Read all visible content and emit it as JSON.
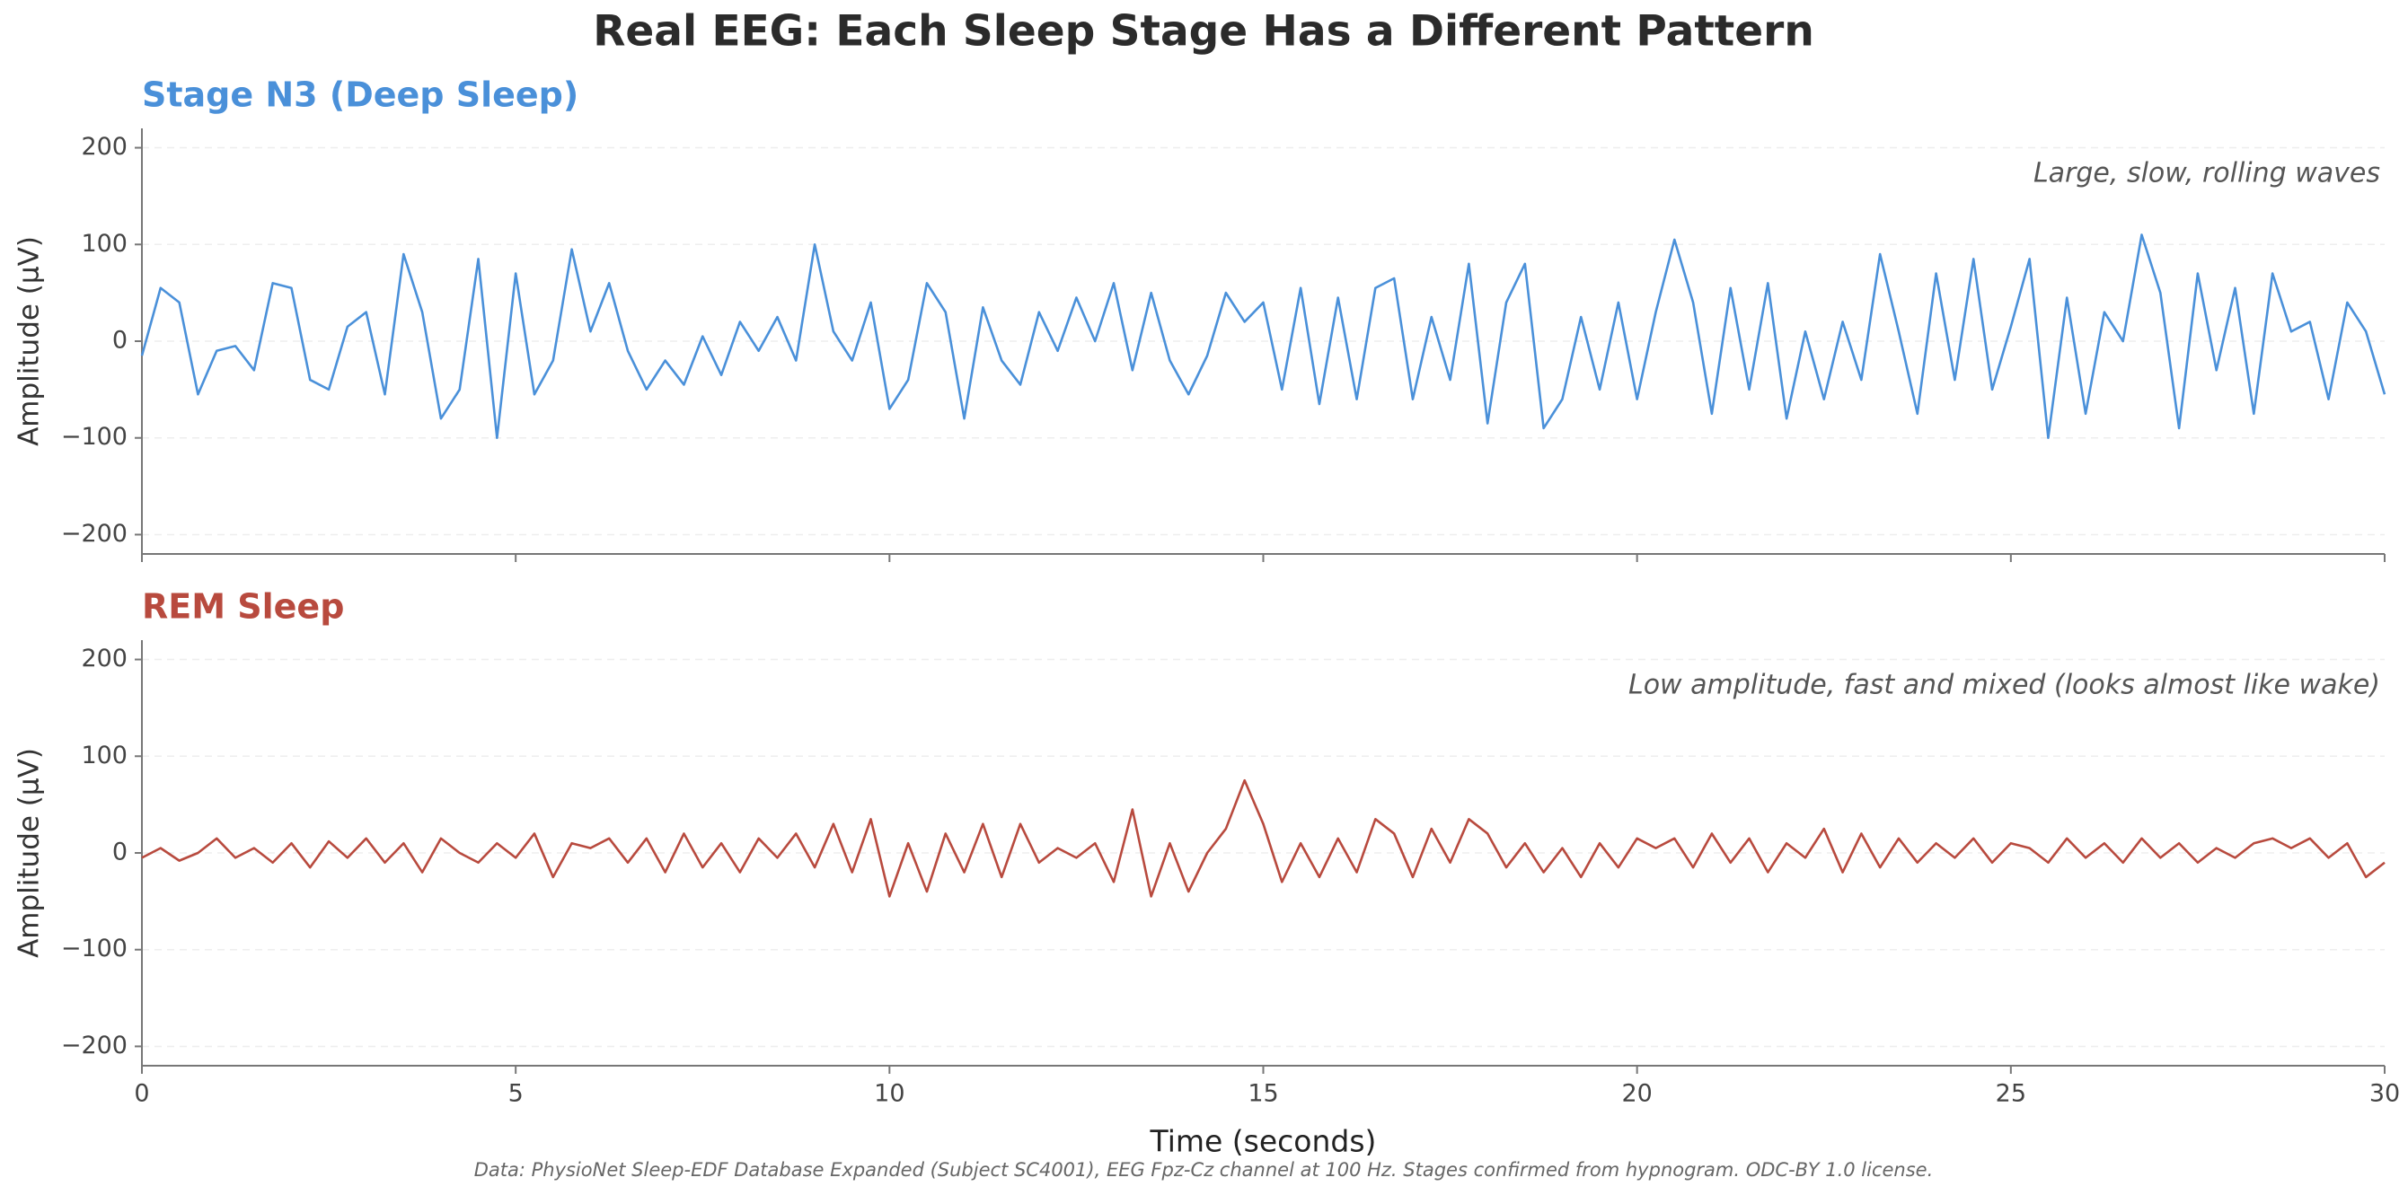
{
  "title": "Real EEG: Each Sleep Stage Has a Different Pattern",
  "source": "Data: PhysioNet Sleep-EDF Database Expanded (Subject SC4001), EEG Fpz-Cz channel at 100 Hz. Stages confirmed from hypnogram. ODC-BY 1.0 license.",
  "chart_data": [
    {
      "type": "line",
      "title": "Stage N3 (Deep Sleep)",
      "annotation": "Large, slow, rolling waves",
      "ylabel": "Amplitude (µV)",
      "color": "#4a90d9",
      "grid": true,
      "xlim": [
        0,
        30
      ],
      "xticks": [
        0,
        5,
        10,
        15,
        20,
        25,
        30
      ],
      "ylim": [
        -220,
        220
      ],
      "yticks": [
        {
          "value": -200,
          "label": "−200"
        },
        {
          "value": -100,
          "label": "−100"
        },
        0,
        100,
        200
      ],
      "x": [
        0,
        0.25,
        0.5,
        0.75,
        1,
        1.25,
        1.5,
        1.75,
        2,
        2.25,
        2.5,
        2.75,
        3,
        3.25,
        3.5,
        3.75,
        4,
        4.25,
        4.5,
        4.75,
        5,
        5.25,
        5.5,
        5.75,
        6,
        6.25,
        6.5,
        6.75,
        7,
        7.25,
        7.5,
        7.75,
        8,
        8.25,
        8.5,
        8.75,
        9,
        9.25,
        9.5,
        9.75,
        10,
        10.25,
        10.5,
        10.75,
        11,
        11.25,
        11.5,
        11.75,
        12,
        12.25,
        12.5,
        12.75,
        13,
        13.25,
        13.5,
        13.75,
        14,
        14.25,
        14.5,
        14.75,
        15,
        15.25,
        15.5,
        15.75,
        16,
        16.25,
        16.5,
        16.75,
        17,
        17.25,
        17.5,
        17.75,
        18,
        18.25,
        18.5,
        18.75,
        19,
        19.25,
        19.5,
        19.75,
        20,
        20.25,
        20.5,
        20.75,
        21,
        21.25,
        21.5,
        21.75,
        22,
        22.25,
        22.5,
        22.75,
        23,
        23.25,
        23.5,
        23.75,
        24,
        24.25,
        24.5,
        24.75,
        25,
        25.25,
        25.5,
        25.75,
        26,
        26.25,
        26.5,
        26.75,
        27,
        27.25,
        27.5,
        27.75,
        28,
        28.25,
        28.5,
        28.75,
        29,
        29.25,
        29.5,
        29.75,
        30
      ],
      "values": [
        -15,
        55,
        40,
        -55,
        -10,
        -5,
        -30,
        60,
        55,
        -40,
        -50,
        15,
        30,
        -55,
        90,
        30,
        -80,
        -50,
        85,
        -100,
        70,
        -55,
        -20,
        95,
        10,
        60,
        -10,
        -50,
        -20,
        -45,
        5,
        -35,
        20,
        -10,
        25,
        -20,
        100,
        10,
        -20,
        40,
        -70,
        -40,
        60,
        30,
        -80,
        35,
        -20,
        -45,
        30,
        -10,
        45,
        0,
        60,
        -30,
        50,
        -20,
        -55,
        -15,
        50,
        20,
        40,
        -50,
        55,
        -65,
        45,
        -60,
        55,
        65,
        -60,
        25,
        -40,
        80,
        -85,
        40,
        80,
        -90,
        -60,
        25,
        -50,
        40,
        -60,
        30,
        105,
        40,
        -75,
        55,
        -50,
        60,
        -80,
        10,
        -60,
        20,
        -40,
        90,
        10,
        -75,
        70,
        -40,
        85,
        -50,
        15,
        85,
        -100,
        45,
        -75,
        30,
        0,
        110,
        50,
        -90,
        70,
        -30,
        55,
        -75,
        70,
        10,
        20,
        -60,
        40,
        10,
        -55
      ]
    },
    {
      "type": "line",
      "title": "REM Sleep",
      "annotation": "Low amplitude, fast and mixed (looks almost like wake)",
      "ylabel": "Amplitude (µV)",
      "xlabel": "Time (seconds)",
      "color": "#b84a3e",
      "grid": true,
      "xlim": [
        0,
        30
      ],
      "xticks": [
        0,
        5,
        10,
        15,
        20,
        25,
        30
      ],
      "ylim": [
        -220,
        220
      ],
      "yticks": [
        {
          "value": -200,
          "label": "−200"
        },
        {
          "value": -100,
          "label": "−100"
        },
        0,
        100,
        200
      ],
      "x": [
        0,
        0.25,
        0.5,
        0.75,
        1,
        1.25,
        1.5,
        1.75,
        2,
        2.25,
        2.5,
        2.75,
        3,
        3.25,
        3.5,
        3.75,
        4,
        4.25,
        4.5,
        4.75,
        5,
        5.25,
        5.5,
        5.75,
        6,
        6.25,
        6.5,
        6.75,
        7,
        7.25,
        7.5,
        7.75,
        8,
        8.25,
        8.5,
        8.75,
        9,
        9.25,
        9.5,
        9.75,
        10,
        10.25,
        10.5,
        10.75,
        11,
        11.25,
        11.5,
        11.75,
        12,
        12.25,
        12.5,
        12.75,
        13,
        13.25,
        13.5,
        13.75,
        14,
        14.25,
        14.5,
        14.75,
        15,
        15.25,
        15.5,
        15.75,
        16,
        16.25,
        16.5,
        16.75,
        17,
        17.25,
        17.5,
        17.75,
        18,
        18.25,
        18.5,
        18.75,
        19,
        19.25,
        19.5,
        19.75,
        20,
        20.25,
        20.5,
        20.75,
        21,
        21.25,
        21.5,
        21.75,
        22,
        22.25,
        22.5,
        22.75,
        23,
        23.25,
        23.5,
        23.75,
        24,
        24.25,
        24.5,
        24.75,
        25,
        25.25,
        25.5,
        25.75,
        26,
        26.25,
        26.5,
        26.75,
        27,
        27.25,
        27.5,
        27.75,
        28,
        28.25,
        28.5,
        28.75,
        29,
        29.25,
        29.5,
        29.75,
        30
      ],
      "values": [
        -5,
        5,
        -8,
        0,
        15,
        -5,
        5,
        -10,
        10,
        -15,
        12,
        -5,
        15,
        -10,
        10,
        -20,
        15,
        0,
        -10,
        10,
        -5,
        20,
        -25,
        10,
        5,
        15,
        -10,
        15,
        -20,
        20,
        -15,
        10,
        -20,
        15,
        -5,
        20,
        -15,
        30,
        -20,
        35,
        -45,
        10,
        -40,
        20,
        -20,
        30,
        -25,
        30,
        -10,
        5,
        -5,
        10,
        -30,
        45,
        -45,
        10,
        -40,
        0,
        25,
        75,
        30,
        -30,
        10,
        -25,
        15,
        -20,
        35,
        20,
        -25,
        25,
        -10,
        35,
        20,
        -15,
        10,
        -20,
        5,
        -25,
        10,
        -15,
        15,
        5,
        15,
        -15,
        20,
        -10,
        15,
        -20,
        10,
        -5,
        25,
        -20,
        20,
        -15,
        15,
        -10,
        10,
        -5,
        15,
        -10,
        10,
        5,
        -10,
        15,
        -5,
        10,
        -10,
        15,
        -5,
        10,
        -10,
        5,
        -5,
        10,
        15,
        5,
        15,
        -5,
        10,
        -25,
        -10
      ]
    }
  ]
}
